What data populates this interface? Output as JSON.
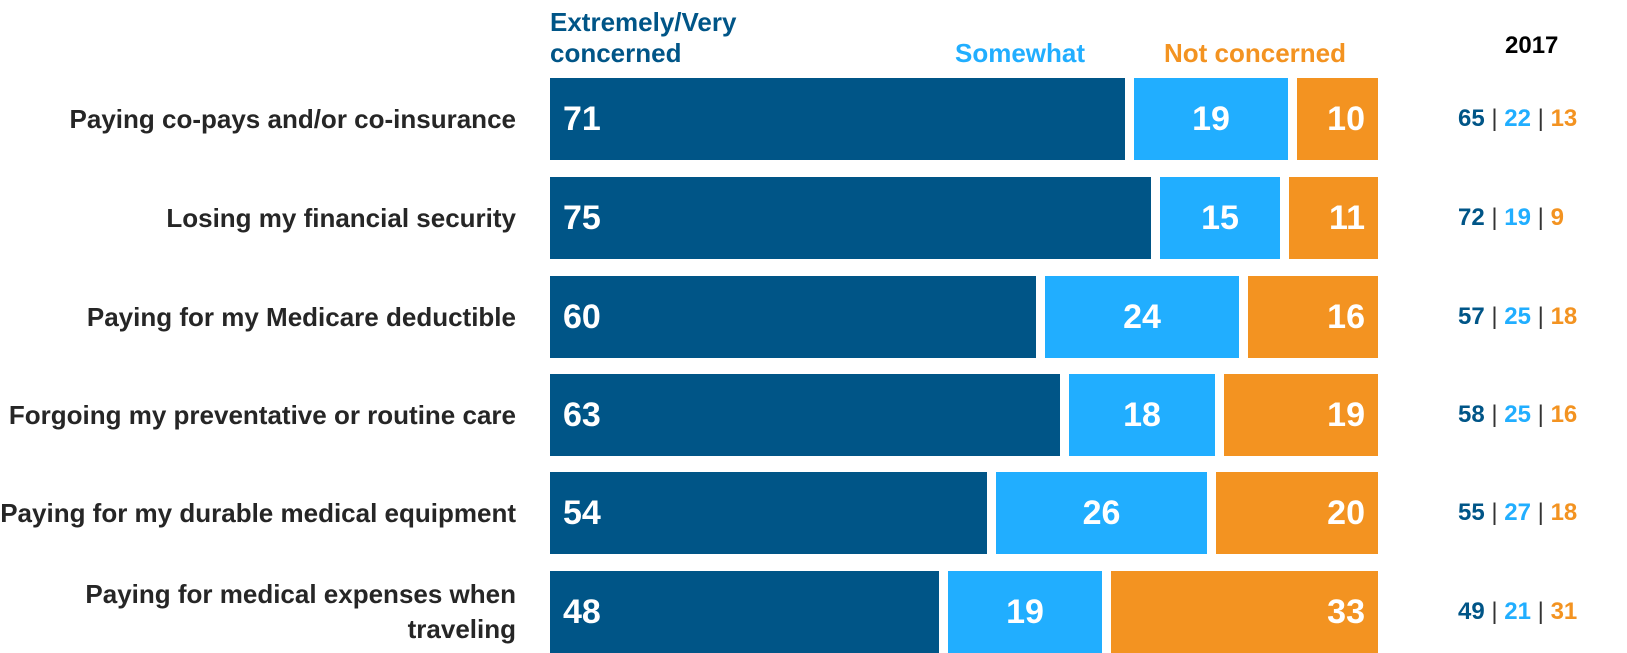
{
  "chart_data": {
    "type": "bar",
    "orientation": "horizontal",
    "stacked": true,
    "categories": [
      "Paying co-pays and/or co-insurance",
      "Losing my financial security",
      "Paying for my Medicare deductible",
      "Forgoing my preventative or routine care",
      "Paying for my durable medical equipment",
      "Paying for medical expenses when traveling"
    ],
    "series": [
      {
        "name": "Extremely/Very concerned",
        "color": "#005587",
        "values": [
          71,
          75,
          60,
          63,
          54,
          48
        ]
      },
      {
        "name": "Somewhat",
        "color": "#21aeff",
        "values": [
          19,
          15,
          24,
          18,
          26,
          19
        ]
      },
      {
        "name": "Not concerned",
        "color": "#f39321",
        "values": [
          10,
          11,
          16,
          19,
          20,
          33
        ]
      }
    ],
    "comparison": {
      "label": "2017",
      "values": [
        [
          65,
          22,
          13
        ],
        [
          72,
          19,
          9
        ],
        [
          57,
          25,
          18
        ],
        [
          58,
          25,
          16
        ],
        [
          55,
          27,
          18
        ],
        [
          49,
          21,
          31
        ]
      ]
    },
    "legend_position": "top",
    "grid": false
  }
}
